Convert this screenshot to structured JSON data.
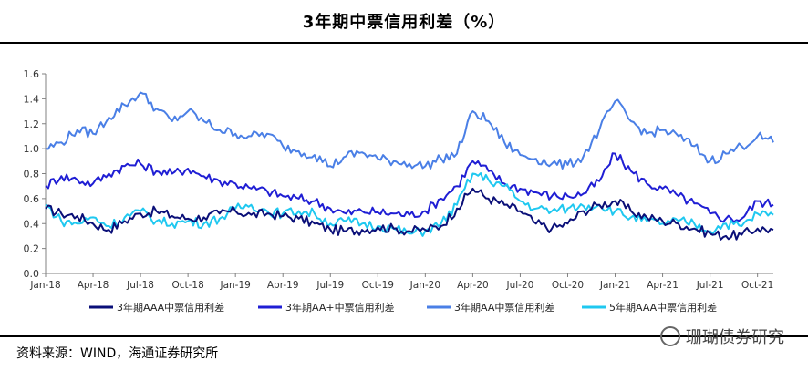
{
  "page": {
    "title": "3年期中票信用利差（%）",
    "source": "资料来源：WIND，海通证券研究所",
    "watermark": "珊瑚债券研究"
  },
  "chart_data": {
    "type": "line",
    "title": "3年期中票信用利差（%）",
    "xlabel": "",
    "ylabel": "",
    "ylim": [
      0,
      1.6
    ],
    "yticks": [
      "0.0",
      "0.2",
      "0.4",
      "0.6",
      "0.8",
      "1.0",
      "1.2",
      "1.4",
      "1.6"
    ],
    "xticks": [
      "Jan-18",
      "Apr-18",
      "Jul-18",
      "Oct-18",
      "Jan-19",
      "Apr-19",
      "Jul-19",
      "Oct-19",
      "Jan-20",
      "Apr-20",
      "Jul-20",
      "Oct-20",
      "Jan-21",
      "Apr-21",
      "Jul-21",
      "Oct-21"
    ],
    "grid": false,
    "legend": "bottom",
    "x": [
      "2018-01",
      "2018-02",
      "2018-03",
      "2018-04",
      "2018-05",
      "2018-06",
      "2018-07",
      "2018-08",
      "2018-09",
      "2018-10",
      "2018-11",
      "2018-12",
      "2019-01",
      "2019-02",
      "2019-03",
      "2019-04",
      "2019-05",
      "2019-06",
      "2019-07",
      "2019-08",
      "2019-09",
      "2019-10",
      "2019-11",
      "2019-12",
      "2020-01",
      "2020-02",
      "2020-03",
      "2020-04",
      "2020-05",
      "2020-06",
      "2020-07",
      "2020-08",
      "2020-09",
      "2020-10",
      "2020-11",
      "2020-12",
      "2021-01",
      "2021-02",
      "2021-03",
      "2021-04",
      "2021-05",
      "2021-06",
      "2021-07",
      "2021-08",
      "2021-09",
      "2021-10",
      "2021-11"
    ],
    "series": [
      {
        "name": "3年期AAA中票信用利差",
        "color": "#0a0f78",
        "values": [
          0.52,
          0.48,
          0.46,
          0.4,
          0.35,
          0.42,
          0.48,
          0.5,
          0.46,
          0.44,
          0.45,
          0.48,
          0.5,
          0.47,
          0.48,
          0.46,
          0.44,
          0.4,
          0.35,
          0.34,
          0.35,
          0.37,
          0.36,
          0.34,
          0.35,
          0.38,
          0.52,
          0.68,
          0.6,
          0.55,
          0.5,
          0.4,
          0.36,
          0.4,
          0.5,
          0.55,
          0.58,
          0.5,
          0.45,
          0.42,
          0.4,
          0.36,
          0.32,
          0.3,
          0.31,
          0.36,
          0.35
        ]
      },
      {
        "name": "3年期AA+中票信用利差",
        "color": "#1f1ed4",
        "values": [
          0.7,
          0.78,
          0.75,
          0.72,
          0.8,
          0.86,
          0.88,
          0.82,
          0.8,
          0.84,
          0.78,
          0.74,
          0.72,
          0.68,
          0.66,
          0.62,
          0.6,
          0.58,
          0.52,
          0.48,
          0.5,
          0.49,
          0.48,
          0.47,
          0.5,
          0.6,
          0.7,
          0.9,
          0.82,
          0.72,
          0.68,
          0.65,
          0.62,
          0.62,
          0.64,
          0.74,
          0.96,
          0.82,
          0.72,
          0.68,
          0.62,
          0.56,
          0.48,
          0.44,
          0.44,
          0.58,
          0.55
        ]
      },
      {
        "name": "3年期AA中票信用利差",
        "color": "#4a7fe6",
        "values": [
          1.0,
          1.05,
          1.15,
          1.12,
          1.25,
          1.35,
          1.45,
          1.32,
          1.22,
          1.3,
          1.22,
          1.15,
          1.12,
          1.1,
          1.12,
          1.02,
          0.98,
          0.95,
          0.86,
          0.94,
          0.97,
          0.92,
          0.9,
          0.88,
          0.86,
          0.92,
          0.96,
          1.3,
          1.22,
          1.05,
          0.95,
          0.92,
          0.88,
          0.87,
          0.94,
          1.15,
          1.38,
          1.22,
          1.12,
          1.15,
          1.1,
          1.02,
          0.9,
          0.96,
          1.02,
          1.1,
          1.05
        ]
      },
      {
        "name": "5年期AAA中票信用利差",
        "color": "#1fc8f0",
        "values": [
          0.55,
          0.42,
          0.4,
          0.45,
          0.38,
          0.45,
          0.5,
          0.42,
          0.4,
          0.42,
          0.4,
          0.44,
          0.52,
          0.55,
          0.5,
          0.48,
          0.5,
          0.48,
          0.4,
          0.42,
          0.4,
          0.38,
          0.36,
          0.32,
          0.34,
          0.4,
          0.55,
          0.8,
          0.75,
          0.7,
          0.58,
          0.52,
          0.5,
          0.52,
          0.54,
          0.55,
          0.5,
          0.45,
          0.42,
          0.4,
          0.42,
          0.4,
          0.34,
          0.4,
          0.38,
          0.48,
          0.47
        ]
      }
    ]
  }
}
